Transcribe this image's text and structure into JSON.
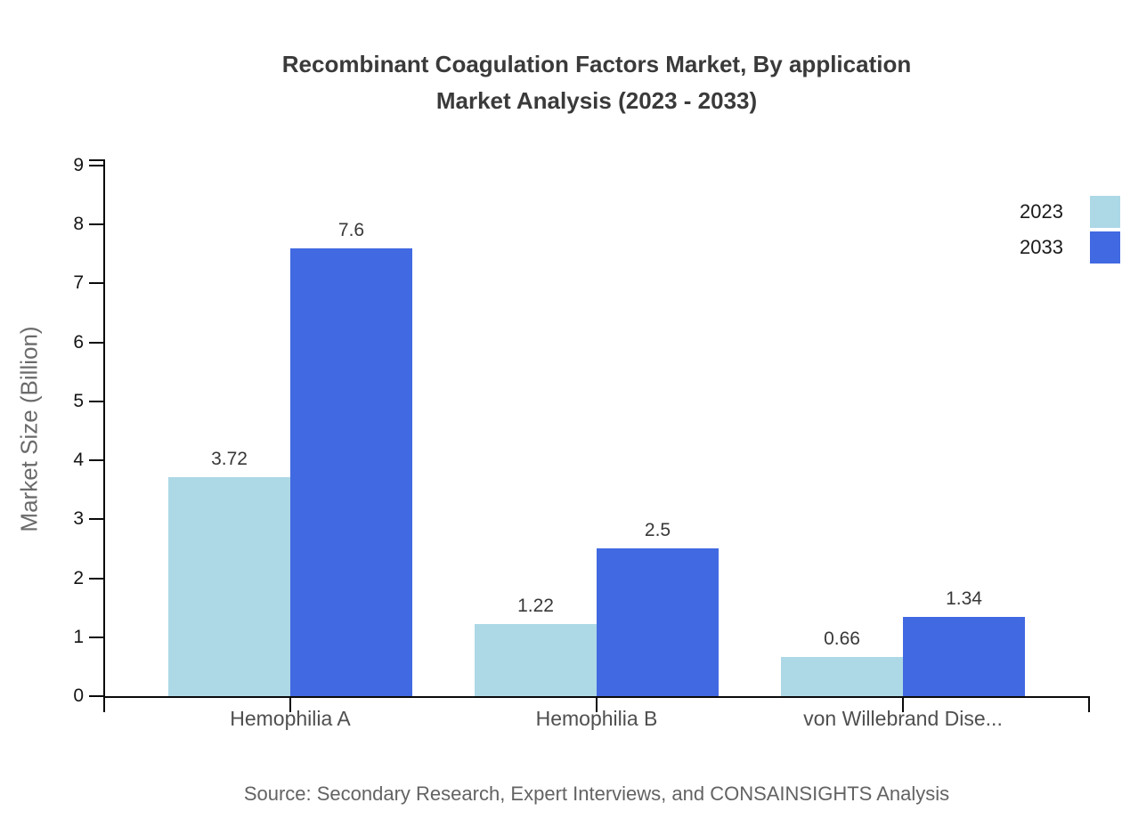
{
  "title": {
    "line1": "Recombinant Coagulation Factors Market, By application",
    "line2": "Market Analysis (2023 - 2033)"
  },
  "source": "Source: Secondary Research, Expert Interviews, and CONSAINSIGHTS Analysis",
  "chart_data": {
    "type": "bar",
    "title": "Recombinant Coagulation Factors Market, By application Market Analysis (2023 - 2033)",
    "categories": [
      "Hemophilia A",
      "Hemophilia B",
      "von Willebrand Dise..."
    ],
    "series": [
      {
        "name": "2023",
        "color": "#ADD8E6",
        "values": [
          3.72,
          1.22,
          0.66
        ]
      },
      {
        "name": "2033",
        "color": "#4169E1",
        "values": [
          7.6,
          2.5,
          1.34
        ]
      }
    ],
    "value_labels": {
      "2023": [
        "3.72",
        "1.22",
        "0.66"
      ],
      "2033": [
        "7.6",
        "2.5",
        "1.34"
      ]
    },
    "xlabel": "",
    "ylabel": "Market Size (Billion)",
    "ylim": [
      0,
      9
    ],
    "yticks": [
      0,
      1,
      2,
      3,
      4,
      5,
      6,
      7,
      8,
      9
    ],
    "grid": false,
    "legend_position": "top-right",
    "axis_color": "#0a0a0a"
  }
}
